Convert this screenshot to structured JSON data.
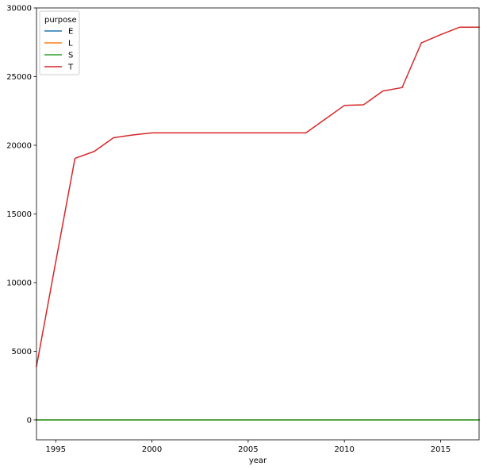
{
  "chart_data": {
    "type": "line",
    "title": "",
    "xlabel": "year",
    "ylabel": "",
    "xlim": [
      1994,
      2017
    ],
    "ylim": [
      -1450,
      30000
    ],
    "x_ticks": [
      1995,
      2000,
      2005,
      2010,
      2015
    ],
    "y_ticks": [
      0,
      5000,
      10000,
      15000,
      20000,
      25000,
      30000
    ],
    "x_tick_labels": [
      "1995",
      "2000",
      "2005",
      "2010",
      "2015"
    ],
    "y_tick_labels": [
      "0",
      "5000",
      "10000",
      "15000",
      "20000",
      "25000",
      "30000"
    ],
    "grid": false,
    "legend": {
      "title": "purpose",
      "placement": "top-left"
    },
    "series": [
      {
        "name": "E",
        "color": "#1f77b4",
        "x": [
          1994,
          1995,
          1996,
          1997,
          1998,
          1999,
          2000,
          2001,
          2002,
          2003,
          2004,
          2005,
          2006,
          2007,
          2008,
          2009,
          2010,
          2011,
          2012,
          2013,
          2014,
          2015,
          2016,
          2017
        ],
        "values": [
          0,
          0,
          0,
          0,
          0,
          0,
          0,
          0,
          0,
          0,
          0,
          0,
          0,
          0,
          0,
          0,
          0,
          0,
          0,
          0,
          0,
          0,
          0,
          0
        ]
      },
      {
        "name": "L",
        "color": "#ff7f0e",
        "x": [
          1994,
          1995,
          1996,
          1997,
          1998,
          1999,
          2000,
          2001,
          2002,
          2003,
          2004,
          2005,
          2006,
          2007,
          2008,
          2009,
          2010,
          2011,
          2012,
          2013,
          2014,
          2015,
          2016,
          2017
        ],
        "values": [
          0,
          0,
          0,
          0,
          0,
          0,
          0,
          0,
          0,
          0,
          0,
          0,
          0,
          0,
          0,
          0,
          0,
          0,
          0,
          0,
          0,
          0,
          0,
          0
        ]
      },
      {
        "name": "S",
        "color": "#2ca02c",
        "x": [
          1994,
          1995,
          1996,
          1997,
          1998,
          1999,
          2000,
          2001,
          2002,
          2003,
          2004,
          2005,
          2006,
          2007,
          2008,
          2009,
          2010,
          2011,
          2012,
          2013,
          2014,
          2015,
          2016,
          2017
        ],
        "values": [
          0,
          0,
          0,
          0,
          0,
          0,
          0,
          0,
          0,
          0,
          0,
          0,
          0,
          0,
          0,
          0,
          0,
          0,
          0,
          0,
          0,
          0,
          0,
          0
        ]
      },
      {
        "name": "T",
        "color": "#d62728",
        "x": [
          1994,
          1995,
          1996,
          1997,
          1998,
          1999,
          2000,
          2001,
          2002,
          2003,
          2004,
          2005,
          2006,
          2007,
          2008,
          2009,
          2010,
          2011,
          2012,
          2013,
          2014,
          2015,
          2016,
          2017
        ],
        "values": [
          3900,
          11500,
          19050,
          19550,
          20550,
          20750,
          20900,
          20900,
          20900,
          20900,
          20900,
          20900,
          20900,
          20900,
          20900,
          21900,
          22900,
          22950,
          23950,
          24200,
          27450,
          28050,
          28600,
          28600
        ]
      }
    ]
  }
}
